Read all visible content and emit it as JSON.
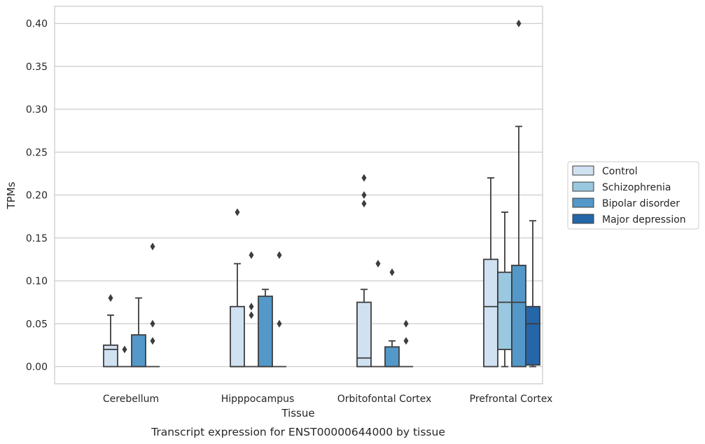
{
  "chart_data": {
    "type": "box",
    "xlabel": "Tissue",
    "ylabel": "TPMs",
    "caption": "Transcript expression for ENST00000644000 by tissue",
    "ylim": [
      -0.02,
      0.42
    ],
    "yticks": [
      "0.00",
      "0.05",
      "0.10",
      "0.15",
      "0.20",
      "0.25",
      "0.30",
      "0.35",
      "0.40"
    ],
    "grid": true,
    "legend_position": "right",
    "categories": [
      "Cerebellum",
      "Hipppocampus",
      "Orbitofontal Cortex",
      "Prefrontal Cortex"
    ],
    "series": [
      {
        "name": "Control",
        "color": "#d0e1f2",
        "boxes": [
          {
            "q1": 0.0,
            "median": 0.02,
            "q3": 0.025,
            "whislo": 0.0,
            "whishi": 0.06,
            "fliers": [
              0.08
            ]
          },
          {
            "q1": 0.0,
            "median": 0.0,
            "q3": 0.07,
            "whislo": 0.0,
            "whishi": 0.12,
            "fliers": [
              0.18
            ]
          },
          {
            "q1": 0.0,
            "median": 0.01,
            "q3": 0.075,
            "whislo": 0.0,
            "whishi": 0.09,
            "fliers": [
              0.19,
              0.2,
              0.22
            ]
          },
          {
            "q1": 0.0,
            "median": 0.07,
            "q3": 0.125,
            "whislo": 0.0,
            "whishi": 0.22,
            "fliers": []
          }
        ]
      },
      {
        "name": "Schizophrenia",
        "color": "#9ac8e0",
        "boxes": [
          {
            "q1": 0.0,
            "median": 0.0,
            "q3": 0.0,
            "whislo": 0.0,
            "whishi": 0.0,
            "fliers": [
              0.02
            ]
          },
          {
            "q1": 0.0,
            "median": 0.0,
            "q3": 0.0,
            "whislo": 0.0,
            "whishi": 0.0,
            "fliers": [
              0.06,
              0.07,
              0.13
            ]
          },
          {
            "q1": 0.0,
            "median": 0.0,
            "q3": 0.0,
            "whislo": 0.0,
            "whishi": 0.0,
            "fliers": [
              0.12
            ]
          },
          {
            "q1": 0.02,
            "median": 0.075,
            "q3": 0.11,
            "whislo": 0.0,
            "whishi": 0.18,
            "fliers": []
          }
        ]
      },
      {
        "name": "Bipolar disorder",
        "color": "#5398c8",
        "boxes": [
          {
            "q1": 0.0,
            "median": 0.0,
            "q3": 0.037,
            "whislo": 0.0,
            "whishi": 0.08,
            "fliers": []
          },
          {
            "q1": 0.0,
            "median": 0.0,
            "q3": 0.082,
            "whislo": 0.0,
            "whishi": 0.09,
            "fliers": []
          },
          {
            "q1": 0.0,
            "median": 0.0,
            "q3": 0.023,
            "whislo": 0.0,
            "whishi": 0.03,
            "fliers": [
              0.11
            ]
          },
          {
            "q1": 0.0,
            "median": 0.075,
            "q3": 0.118,
            "whislo": 0.0,
            "whishi": 0.28,
            "fliers": [
              0.4
            ]
          }
        ]
      },
      {
        "name": "Major depression",
        "color": "#2566a8",
        "boxes": [
          {
            "q1": 0.0,
            "median": 0.0,
            "q3": 0.0,
            "whislo": 0.0,
            "whishi": 0.0,
            "fliers": [
              0.03,
              0.05,
              0.14
            ]
          },
          {
            "q1": 0.0,
            "median": 0.0,
            "q3": 0.0,
            "whislo": 0.0,
            "whishi": 0.0,
            "fliers": [
              0.05,
              0.13
            ]
          },
          {
            "q1": 0.0,
            "median": 0.0,
            "q3": 0.0,
            "whislo": 0.0,
            "whishi": 0.0,
            "fliers": [
              0.03,
              0.05
            ]
          },
          {
            "q1": 0.002,
            "median": 0.05,
            "q3": 0.07,
            "whislo": 0.0,
            "whishi": 0.17,
            "fliers": []
          }
        ]
      }
    ]
  }
}
